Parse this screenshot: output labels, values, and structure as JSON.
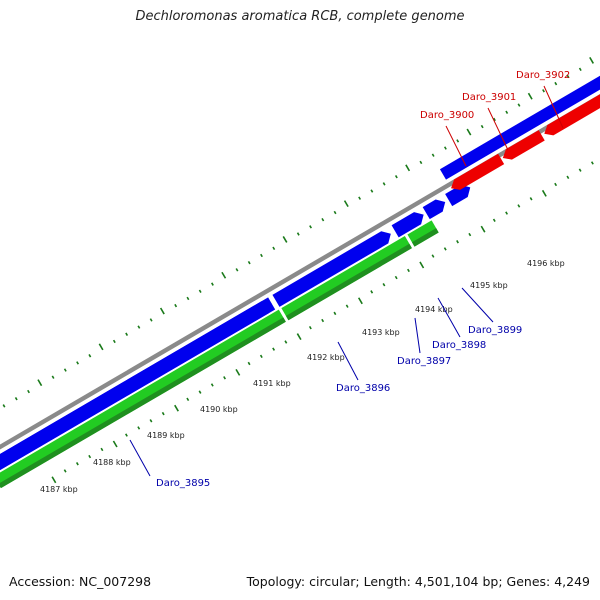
{
  "header": {
    "title": "Dechloromonas aromatica RCB, complete genome"
  },
  "footer": {
    "accession": "Accession: NC_007298",
    "topology": "Topology: circular; Length: 4,501,104 bp; Genes: 4,249"
  },
  "colors": {
    "forward_cds": "#0000ee",
    "reverse_cds": "#ee0000",
    "rna_gene": "#22cc22",
    "backbone": "#8a8a8a",
    "tick": "#1a7a1a",
    "forward_label": "#0000aa",
    "reverse_label": "#cc0000"
  },
  "ticks": [
    "4187 kbp",
    "4188 kbp",
    "4189 kbp",
    "4190 kbp",
    "4191 kbp",
    "4192 kbp",
    "4193 kbp",
    "4194 kbp",
    "4195 kbp",
    "4196 kbp"
  ],
  "genes": [
    {
      "label": "Daro_3895",
      "strand": "forward"
    },
    {
      "label": "Daro_3896",
      "strand": "forward"
    },
    {
      "label": "Daro_3897",
      "strand": "forward"
    },
    {
      "label": "Daro_3898",
      "strand": "forward"
    },
    {
      "label": "Daro_3899",
      "strand": "forward"
    },
    {
      "label": "Daro_3900",
      "strand": "reverse"
    },
    {
      "label": "Daro_3901",
      "strand": "reverse"
    },
    {
      "label": "Daro_3902",
      "strand": "reverse"
    }
  ]
}
